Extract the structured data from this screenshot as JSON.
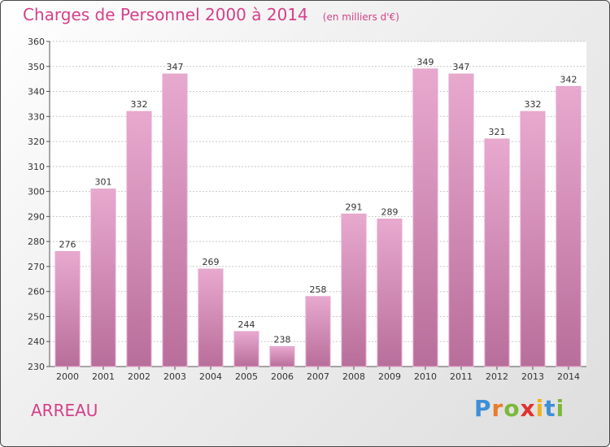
{
  "chart_data": {
    "type": "bar",
    "title": "Charges de Personnel 2000 à 2014",
    "subtitle": "(en milliers d'€)",
    "categories": [
      "2000",
      "2001",
      "2002",
      "2003",
      "2004",
      "2005",
      "2006",
      "2007",
      "2008",
      "2009",
      "2010",
      "2011",
      "2012",
      "2013",
      "2014"
    ],
    "values": [
      276,
      301,
      332,
      347,
      269,
      244,
      238,
      258,
      291,
      289,
      349,
      347,
      321,
      332,
      342
    ],
    "ylim": [
      230,
      360
    ],
    "yticks": [
      230,
      240,
      250,
      260,
      270,
      280,
      290,
      300,
      310,
      320,
      330,
      340,
      350,
      360
    ],
    "grid": true,
    "bar_color": "#d98fbb"
  },
  "place": "ARREAU",
  "logo": {
    "text": "Proxiti",
    "letters": [
      "P",
      "r",
      "o",
      "x",
      "i",
      "t",
      "i"
    ],
    "colors": [
      "#3d8fd6",
      "#e97b2a",
      "#7cb83a",
      "#e0312f",
      "#f0b21f",
      "#3d8fd6",
      "#7cb83a"
    ]
  }
}
